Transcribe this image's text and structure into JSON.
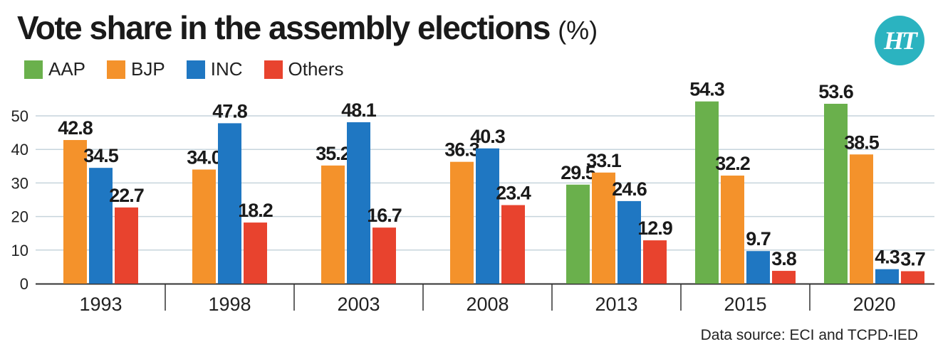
{
  "title": "Vote share in the assembly elections",
  "title_unit": "(%)",
  "logo_text": "HT",
  "source": "Data source: ECI and TCPD-IED",
  "colors": {
    "AAP": "#6ab04c",
    "BJP": "#f4922b",
    "INC": "#1f77c2",
    "Others": "#e8432e",
    "grid": "#c6d4dc"
  },
  "chart_data": {
    "type": "bar",
    "categories": [
      "1993",
      "1998",
      "2003",
      "2008",
      "2013",
      "2015",
      "2020"
    ],
    "series": [
      {
        "name": "AAP",
        "values": [
          null,
          null,
          null,
          null,
          29.5,
          54.3,
          53.6
        ]
      },
      {
        "name": "BJP",
        "values": [
          42.8,
          34.0,
          35.2,
          36.3,
          33.1,
          32.2,
          38.5
        ]
      },
      {
        "name": "INC",
        "values": [
          34.5,
          47.8,
          48.1,
          40.3,
          24.6,
          9.7,
          4.3
        ]
      },
      {
        "name": "Others",
        "values": [
          22.7,
          18.2,
          16.7,
          23.4,
          12.9,
          3.8,
          3.7
        ]
      }
    ],
    "yticks": [
      "0",
      "10",
      "20",
      "30",
      "40",
      "50"
    ],
    "ylim": [
      0,
      57
    ],
    "grid": true,
    "legend": "top-left"
  }
}
